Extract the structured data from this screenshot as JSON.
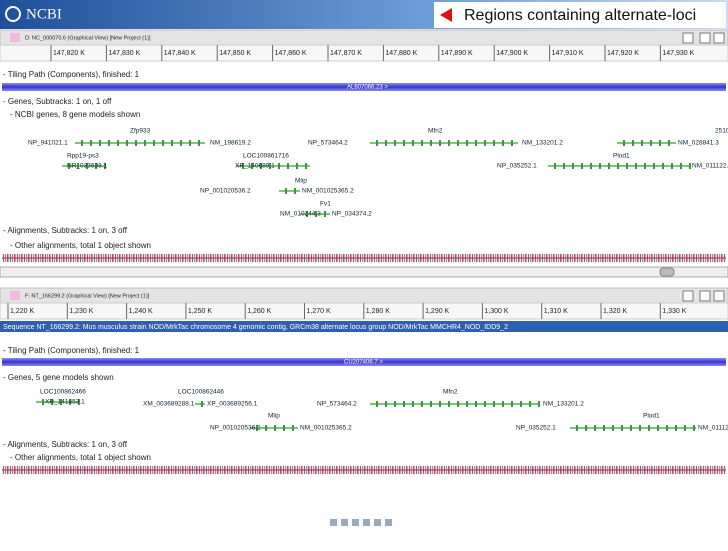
{
  "header": {
    "logo": "NCBI",
    "banner": "Regions containing alternate-loci"
  },
  "panels": [
    {
      "title": "D: NC_000070.6 (Graphical View) [New Project (1)]",
      "ruler": [
        "147,820 K",
        "147,830 K",
        "147,840 K",
        "147,850 K",
        "147,860 K",
        "147,870 K",
        "147,880 K",
        "147,890 K",
        "147,900 K",
        "147,910 K",
        "147,920 K",
        "147,930 K"
      ],
      "tiling": "- Tiling Path (Components), finished: 1",
      "component": "AL607066.23 >",
      "genes_track": "- Genes, Subtracks: 1 on, 1 off",
      "genes_sub": "- NCBI genes, 8 gene models shown",
      "genes": [
        "Zfp933",
        "NP_941021.1",
        "NM_198619.2",
        "Mfn2",
        "NP_573464.2",
        "NM_133201.2",
        "2510",
        "NM_028841.3",
        "Rpp19-ps3",
        "NR_033638.1",
        "LOC100861716",
        "XR_140689.1",
        "Plod1",
        "NP_035252.1",
        "NM_011122.3",
        "Mlip",
        "NP_001020536.2",
        "NM_001025365.2",
        "Fv1",
        "NM_010244.3",
        "NP_034374.2"
      ],
      "alignments": "- Alignments, Subtracks: 1 on, 3 off",
      "other": "- Other alignments, total 1 object shown"
    },
    {
      "title": "F: NT_166299.2 (Graphical View) [New Project (1)]",
      "ruler": [
        "1,220 K",
        "1,230 K",
        "1,240 K",
        "1,250 K",
        "1,260 K",
        "1,270 K",
        "1,280 K",
        "1,290 K",
        "1,300 K",
        "1,310 K",
        "1,320 K",
        "1,330 K"
      ],
      "sequence": "Sequence NT_166299.2: Mus musculus strain NOD/MrkTac chromosome 4 genomic contig, GRCm38 alternate locus group NOD/MrkTac MMCHR4_NOD_IDD9_2",
      "tiling": "- Tiling Path (Components), finished: 1",
      "component": "CU207406.7 >",
      "genes_track": "- Genes, 5 gene models shown",
      "genes": [
        "LOC100862466",
        "XR_141453.1",
        "LOC100862446",
        "XM_003689288.1",
        "XP_003689256.1",
        "Mfn2",
        "NP_573464.2",
        "NM_133201.2",
        "Mlip",
        "NP_001020536.2",
        "NM_001025365.2",
        "Plod1",
        "NP_035252.1",
        "NM_011122.3"
      ],
      "alignments": "- Alignments, Subtracks: 1 on, 3 off",
      "other": "- Other alignments, total 1 object shown"
    }
  ]
}
